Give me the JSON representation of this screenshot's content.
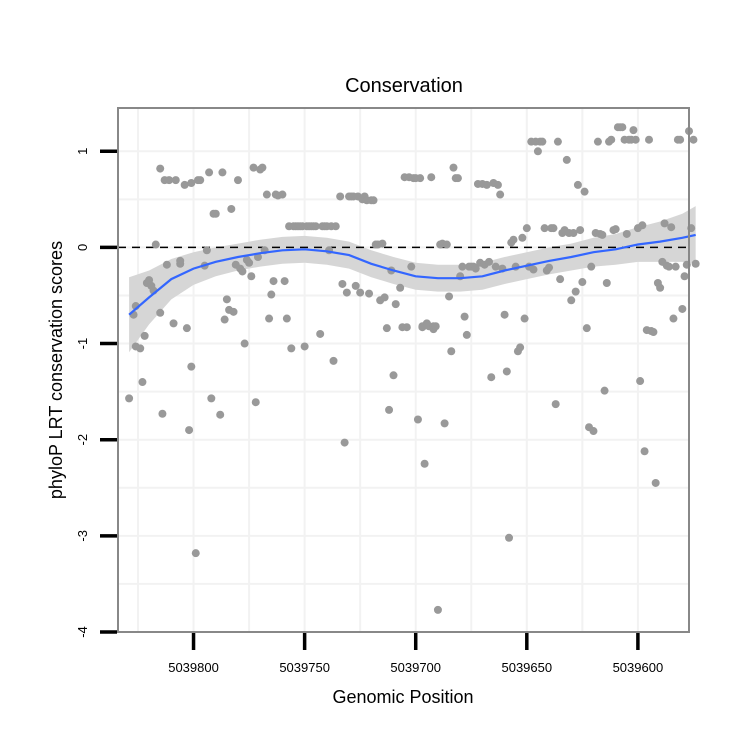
{
  "chart_data": {
    "type": "scatter",
    "title": "Conservation",
    "xlabel": "Genomic Position",
    "ylabel": "phyloP LRT conservation scores",
    "x_reversed": true,
    "xlim": [
      5039834,
      5039577
    ],
    "ylim": [
      -4,
      1.45
    ],
    "xticks": [
      5039800,
      5039750,
      5039700,
      5039650,
      5039600
    ],
    "yticks": [
      -4,
      -3,
      -2,
      -1,
      0,
      1
    ],
    "reference_line": {
      "y": 0,
      "style": "dashed"
    },
    "grid": true,
    "colors": {
      "points": "#999999",
      "smooth": "#3366ff",
      "band": "#d4d4d4",
      "panel_border": "#888888"
    },
    "points": [
      [
        5039829,
        -1.57
      ],
      [
        5039827,
        -0.7
      ],
      [
        5039826,
        -0.61
      ],
      [
        5039826,
        -1.03
      ],
      [
        5039824,
        -1.05
      ],
      [
        5039823,
        -1.4
      ],
      [
        5039822,
        -0.92
      ],
      [
        5039821,
        -0.37
      ],
      [
        5039820,
        -0.34
      ],
      [
        5039819,
        -0.4
      ],
      [
        5039818,
        -0.45
      ],
      [
        5039817,
        0.03
      ],
      [
        5039815,
        -0.68
      ],
      [
        5039815,
        0.82
      ],
      [
        5039814,
        -1.73
      ],
      [
        5039813,
        0.7
      ],
      [
        5039812,
        -0.18
      ],
      [
        5039811,
        0.7
      ],
      [
        5039809,
        -0.79
      ],
      [
        5039808,
        0.7
      ],
      [
        5039806,
        -0.17
      ],
      [
        5039806,
        -0.14
      ],
      [
        5039804,
        0.65
      ],
      [
        5039803,
        -0.84
      ],
      [
        5039802,
        -1.9
      ],
      [
        5039801,
        -1.24
      ],
      [
        5039801,
        0.67
      ],
      [
        5039799,
        -3.18
      ],
      [
        5039798,
        0.7
      ],
      [
        5039797,
        0.7
      ],
      [
        5039795,
        -0.19
      ],
      [
        5039794,
        -0.03
      ],
      [
        5039793,
        0.78
      ],
      [
        5039792,
        -1.57
      ],
      [
        5039791,
        0.35
      ],
      [
        5039790,
        0.35
      ],
      [
        5039788,
        -1.74
      ],
      [
        5039787,
        0.78
      ],
      [
        5039786,
        -0.75
      ],
      [
        5039785,
        -0.54
      ],
      [
        5039784,
        -0.65
      ],
      [
        5039783,
        0.4
      ],
      [
        5039782,
        -0.67
      ],
      [
        5039781,
        -0.18
      ],
      [
        5039780,
        0.7
      ],
      [
        5039779,
        -0.22
      ],
      [
        5039778,
        -0.25
      ],
      [
        5039777,
        -1.0
      ],
      [
        5039776,
        -0.13
      ],
      [
        5039775,
        -0.16
      ],
      [
        5039774,
        -0.3
      ],
      [
        5039773,
        0.83
      ],
      [
        5039772,
        -1.61
      ],
      [
        5039771,
        -0.1
      ],
      [
        5039770,
        0.81
      ],
      [
        5039769,
        0.83
      ],
      [
        5039768,
        -0.03
      ],
      [
        5039767,
        0.55
      ],
      [
        5039766,
        -0.74
      ],
      [
        5039765,
        -0.49
      ],
      [
        5039764,
        -0.35
      ],
      [
        5039763,
        0.55
      ],
      [
        5039762,
        0.54
      ],
      [
        5039760,
        0.55
      ],
      [
        5039759,
        -0.35
      ],
      [
        5039758,
        -0.74
      ],
      [
        5039757,
        0.22
      ],
      [
        5039756,
        -1.05
      ],
      [
        5039755,
        0.22
      ],
      [
        5039754,
        0.22
      ],
      [
        5039753,
        0.22
      ],
      [
        5039752,
        0.22
      ],
      [
        5039751,
        0.22
      ],
      [
        5039750,
        -1.03
      ],
      [
        5039749,
        0.22
      ],
      [
        5039748,
        0.22
      ],
      [
        5039747,
        0.22
      ],
      [
        5039746,
        0.22
      ],
      [
        5039745,
        0.22
      ],
      [
        5039743,
        -0.9
      ],
      [
        5039742,
        0.22
      ],
      [
        5039741,
        0.22
      ],
      [
        5039740,
        0.22
      ],
      [
        5039739,
        -0.03
      ],
      [
        5039738,
        0.22
      ],
      [
        5039737,
        -1.18
      ],
      [
        5039736,
        0.22
      ],
      [
        5039734,
        0.53
      ],
      [
        5039733,
        -0.38
      ],
      [
        5039732,
        -2.03
      ],
      [
        5039731,
        -0.47
      ],
      [
        5039730,
        0.53
      ],
      [
        5039729,
        0.53
      ],
      [
        5039728,
        0.53
      ],
      [
        5039727,
        -0.4
      ],
      [
        5039726,
        0.53
      ],
      [
        5039725,
        -0.47
      ],
      [
        5039724,
        0.5
      ],
      [
        5039723,
        0.53
      ],
      [
        5039722,
        0.49
      ],
      [
        5039721,
        -0.48
      ],
      [
        5039720,
        0.49
      ],
      [
        5039719,
        0.49
      ],
      [
        5039718,
        0.03
      ],
      [
        5039717,
        0.03
      ],
      [
        5039716,
        -0.55
      ],
      [
        5039715,
        0.04
      ],
      [
        5039714,
        -0.52
      ],
      [
        5039713,
        -0.84
      ],
      [
        5039712,
        -1.69
      ],
      [
        5039711,
        -0.24
      ],
      [
        5039710,
        -1.33
      ],
      [
        5039709,
        -0.59
      ],
      [
        5039707,
        -0.42
      ],
      [
        5039706,
        -0.83
      ],
      [
        5039705,
        0.73
      ],
      [
        5039704,
        -0.83
      ],
      [
        5039703,
        0.73
      ],
      [
        5039702,
        -0.2
      ],
      [
        5039701,
        0.72
      ],
      [
        5039700,
        0.72
      ],
      [
        5039699,
        -1.79
      ],
      [
        5039698,
        0.72
      ],
      [
        5039697,
        -0.83
      ],
      [
        5039697,
        -0.82
      ],
      [
        5039696,
        -2.25
      ],
      [
        5039695,
        -0.79
      ],
      [
        5039694,
        -0.82
      ],
      [
        5039693,
        0.73
      ],
      [
        5039692,
        -0.85
      ],
      [
        5039692,
        -0.82
      ],
      [
        5039691,
        -0.82
      ],
      [
        5039690,
        -3.77
      ],
      [
        5039689,
        0.03
      ],
      [
        5039688,
        0.04
      ],
      [
        5039687,
        -1.83
      ],
      [
        5039686,
        0.03
      ],
      [
        5039685,
        -0.51
      ],
      [
        5039684,
        -1.08
      ],
      [
        5039683,
        0.83
      ],
      [
        5039682,
        0.72
      ],
      [
        5039681,
        0.72
      ],
      [
        5039680,
        -0.3
      ],
      [
        5039679,
        -0.2
      ],
      [
        5039678,
        -0.72
      ],
      [
        5039677,
        -0.91
      ],
      [
        5039676,
        -0.2
      ],
      [
        5039675,
        -0.2
      ],
      [
        5039674,
        -0.2
      ],
      [
        5039673,
        -0.22
      ],
      [
        5039672,
        0.66
      ],
      [
        5039671,
        -0.16
      ],
      [
        5039670,
        0.66
      ],
      [
        5039669,
        -0.18
      ],
      [
        5039668,
        0.65
      ],
      [
        5039667,
        -0.15
      ],
      [
        5039666,
        -1.35
      ],
      [
        5039665,
        0.67
      ],
      [
        5039664,
        -0.2
      ],
      [
        5039663,
        0.65
      ],
      [
        5039662,
        0.55
      ],
      [
        5039661,
        -0.22
      ],
      [
        5039660,
        -0.7
      ],
      [
        5039659,
        -1.29
      ],
      [
        5039658,
        -3.02
      ],
      [
        5039657,
        0.05
      ],
      [
        5039656,
        0.08
      ],
      [
        5039655,
        -0.2
      ],
      [
        5039654,
        -1.08
      ],
      [
        5039653,
        -1.04
      ],
      [
        5039652,
        0.1
      ],
      [
        5039651,
        -0.74
      ],
      [
        5039650,
        0.2
      ],
      [
        5039649,
        -0.2
      ],
      [
        5039648,
        1.1
      ],
      [
        5039647,
        -0.23
      ],
      [
        5039646,
        1.1
      ],
      [
        5039645,
        1.0
      ],
      [
        5039644,
        1.1
      ],
      [
        5039643,
        1.1
      ],
      [
        5039642,
        0.2
      ],
      [
        5039641,
        -0.24
      ],
      [
        5039640,
        -0.21
      ],
      [
        5039639,
        0.2
      ],
      [
        5039638,
        0.2
      ],
      [
        5039637,
        -1.63
      ],
      [
        5039636,
        1.1
      ],
      [
        5039635,
        -0.33
      ],
      [
        5039634,
        0.15
      ],
      [
        5039633,
        0.18
      ],
      [
        5039632,
        0.91
      ],
      [
        5039631,
        0.15
      ],
      [
        5039630,
        -0.55
      ],
      [
        5039629,
        0.15
      ],
      [
        5039628,
        -0.46
      ],
      [
        5039627,
        0.65
      ],
      [
        5039626,
        0.18
      ],
      [
        5039625,
        -0.36
      ],
      [
        5039624,
        0.58
      ],
      [
        5039623,
        -0.84
      ],
      [
        5039622,
        -1.87
      ],
      [
        5039621,
        -0.2
      ],
      [
        5039620,
        -1.91
      ],
      [
        5039619,
        0.15
      ],
      [
        5039618,
        1.1
      ],
      [
        5039617,
        0.14
      ],
      [
        5039616,
        0.13
      ],
      [
        5039615,
        -1.49
      ],
      [
        5039614,
        -0.37
      ],
      [
        5039613,
        1.1
      ],
      [
        5039612,
        1.12
      ],
      [
        5039611,
        0.18
      ],
      [
        5039610,
        0.19
      ],
      [
        5039609,
        1.25
      ],
      [
        5039608,
        1.25
      ],
      [
        5039607,
        1.25
      ],
      [
        5039606,
        1.12
      ],
      [
        5039605,
        0.14
      ],
      [
        5039604,
        1.12
      ],
      [
        5039603,
        1.12
      ],
      [
        5039602,
        1.22
      ],
      [
        5039601,
        1.12
      ],
      [
        5039600,
        0.2
      ],
      [
        5039599,
        -1.39
      ],
      [
        5039598,
        0.23
      ],
      [
        5039597,
        -2.12
      ],
      [
        5039596,
        -0.86
      ],
      [
        5039595,
        1.12
      ],
      [
        5039594,
        -0.87
      ],
      [
        5039593,
        -0.88
      ],
      [
        5039592,
        -2.45
      ],
      [
        5039591,
        -0.37
      ],
      [
        5039590,
        -0.42
      ],
      [
        5039589,
        -0.15
      ],
      [
        5039588,
        0.25
      ],
      [
        5039587,
        -0.19
      ],
      [
        5039586,
        -0.2
      ],
      [
        5039585,
        0.21
      ],
      [
        5039584,
        -0.74
      ],
      [
        5039583,
        -0.2
      ],
      [
        5039582,
        1.12
      ],
      [
        5039581,
        1.12
      ],
      [
        5039580,
        -0.64
      ],
      [
        5039579,
        -0.3
      ],
      [
        5039578,
        -0.18
      ],
      [
        5039577,
        1.21
      ],
      [
        5039576,
        0.2
      ],
      [
        5039575,
        1.12
      ],
      [
        5039574,
        -0.17
      ]
    ],
    "smooth": [
      [
        5039829,
        -0.7
      ],
      [
        5039820,
        -0.52
      ],
      [
        5039810,
        -0.33
      ],
      [
        5039800,
        -0.22
      ],
      [
        5039790,
        -0.15
      ],
      [
        5039780,
        -0.1
      ],
      [
        5039770,
        -0.06
      ],
      [
        5039760,
        -0.03
      ],
      [
        5039750,
        -0.02
      ],
      [
        5039740,
        -0.04
      ],
      [
        5039730,
        -0.08
      ],
      [
        5039720,
        -0.17
      ],
      [
        5039710,
        -0.24
      ],
      [
        5039700,
        -0.3
      ],
      [
        5039690,
        -0.32
      ],
      [
        5039680,
        -0.32
      ],
      [
        5039670,
        -0.3
      ],
      [
        5039660,
        -0.24
      ],
      [
        5039650,
        -0.19
      ],
      [
        5039640,
        -0.14
      ],
      [
        5039630,
        -0.1
      ],
      [
        5039620,
        -0.05
      ],
      [
        5039610,
        -0.02
      ],
      [
        5039600,
        0.03
      ],
      [
        5039590,
        0.06
      ],
      [
        5039580,
        0.1
      ],
      [
        5039574,
        0.13
      ]
    ],
    "band_halfwidth": [
      0.39,
      0.28,
      0.21,
      0.17,
      0.15,
      0.14,
      0.14,
      0.14,
      0.14,
      0.14,
      0.14,
      0.14,
      0.14,
      0.14,
      0.14,
      0.14,
      0.14,
      0.14,
      0.14,
      0.14,
      0.14,
      0.15,
      0.16,
      0.18,
      0.21,
      0.25,
      0.3
    ]
  }
}
